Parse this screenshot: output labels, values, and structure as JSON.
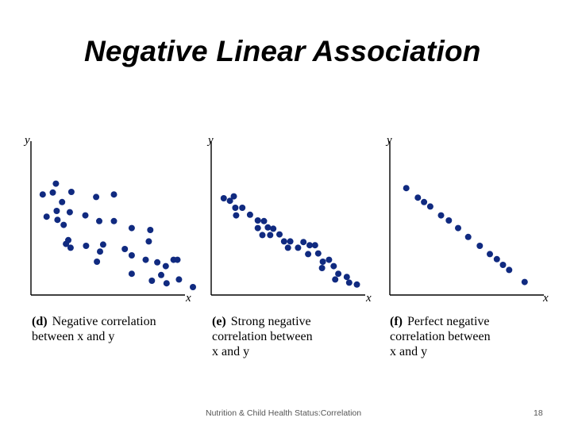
{
  "slide": {
    "title": "Negative Linear Association",
    "footer": "Nutrition & Child Health Status:Correlation",
    "page_number": "18"
  },
  "colors": {
    "point": "#102a80",
    "axis": "#000000"
  },
  "chart_data": [
    {
      "type": "scatter",
      "title": "",
      "xlabel": "x",
      "ylabel": "y",
      "caption": {
        "tag": "(d)",
        "lines": [
          "Negative correlation",
          "between x and y"
        ]
      },
      "xlim": [
        0,
        200
      ],
      "ylim": [
        0,
        200
      ],
      "points": [
        [
          7,
          146
        ],
        [
          20,
          149
        ],
        [
          24,
          163
        ],
        [
          32,
          134
        ],
        [
          44,
          150
        ],
        [
          12,
          111
        ],
        [
          25,
          120
        ],
        [
          26,
          106
        ],
        [
          34,
          98
        ],
        [
          40,
          74
        ],
        [
          42,
          118
        ],
        [
          62,
          113
        ],
        [
          76,
          142
        ],
        [
          80,
          104
        ],
        [
          99,
          146
        ],
        [
          37,
          68
        ],
        [
          43,
          62
        ],
        [
          63,
          65
        ],
        [
          81,
          56
        ],
        [
          99,
          104
        ],
        [
          85,
          67
        ],
        [
          113,
          60
        ],
        [
          77,
          40
        ],
        [
          122,
          93
        ],
        [
          122,
          50
        ],
        [
          122,
          21
        ],
        [
          146,
          90
        ],
        [
          140,
          43
        ],
        [
          144,
          72
        ],
        [
          148,
          10
        ],
        [
          155,
          39
        ],
        [
          160,
          19
        ],
        [
          166,
          33
        ],
        [
          167,
          6
        ],
        [
          176,
          43
        ],
        [
          181,
          43
        ],
        [
          183,
          12
        ],
        [
          201,
          0
        ]
      ]
    },
    {
      "type": "scatter",
      "title": "",
      "xlabel": "x",
      "ylabel": "y",
      "caption": {
        "tag": "(e)",
        "lines": [
          "Strong negative",
          "correlation between",
          "x and y"
        ]
      },
      "xlim": [
        0,
        200
      ],
      "ylim": [
        0,
        200
      ],
      "points": [
        [
          8,
          140
        ],
        [
          16,
          136
        ],
        [
          21,
          143
        ],
        [
          23,
          125
        ],
        [
          32,
          125
        ],
        [
          24,
          113
        ],
        [
          42,
          114
        ],
        [
          52,
          105
        ],
        [
          60,
          104
        ],
        [
          52,
          93
        ],
        [
          65,
          94
        ],
        [
          58,
          82
        ],
        [
          72,
          92
        ],
        [
          68,
          82
        ],
        [
          80,
          83
        ],
        [
          86,
          72
        ],
        [
          94,
          72
        ],
        [
          91,
          62
        ],
        [
          104,
          62
        ],
        [
          111,
          71
        ],
        [
          119,
          66
        ],
        [
          126,
          66
        ],
        [
          117,
          52
        ],
        [
          130,
          53
        ],
        [
          136,
          40
        ],
        [
          135,
          30
        ],
        [
          144,
          43
        ],
        [
          150,
          33
        ],
        [
          156,
          21
        ],
        [
          152,
          12
        ],
        [
          167,
          16
        ],
        [
          170,
          7
        ],
        [
          180,
          4
        ]
      ]
    },
    {
      "type": "scatter",
      "title": "",
      "xlabel": "x",
      "ylabel": "y",
      "caption": {
        "tag": "(f)",
        "lines": [
          "Perfect negative",
          "correlation between",
          "x and y"
        ]
      },
      "xlim": [
        0,
        200
      ],
      "ylim": [
        0,
        200
      ],
      "points": [
        [
          13,
          156
        ],
        [
          28,
          141
        ],
        [
          36,
          134
        ],
        [
          44,
          127
        ],
        [
          58,
          113
        ],
        [
          68,
          105
        ],
        [
          80,
          93
        ],
        [
          93,
          79
        ],
        [
          108,
          65
        ],
        [
          121,
          52
        ],
        [
          130,
          44
        ],
        [
          138,
          35
        ],
        [
          146,
          27
        ],
        [
          166,
          8
        ]
      ]
    }
  ]
}
